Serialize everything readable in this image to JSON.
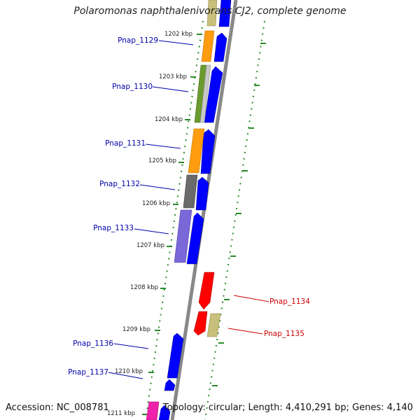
{
  "title": "Polaromonas naphthalenivorans CJ2, complete genome",
  "footer": {
    "accession": "Accession: NC_008781",
    "topology": "Topology: circular; Length: 4,410,291 bp; Genes: 4,140"
  },
  "colors": {
    "label_left": "#0000aa",
    "label_right": "#cc0000",
    "tick": "#2a8a2a",
    "axis": "#888888",
    "forward_strand": "#0000ff"
  },
  "scale_ticks": [
    "1202 kbp",
    "1203 kbp",
    "1204 kbp",
    "1205 kbp",
    "1206 kbp",
    "1207 kbp",
    "1208 kbp",
    "1209 kbp",
    "1210 kbp",
    "1211 kbp"
  ],
  "gene_labels_left": [
    "Pnap_1129",
    "Pnap_1130",
    "Pnap_1131",
    "Pnap_1132",
    "Pnap_1133",
    "Pnap_1136",
    "Pnap_1137"
  ],
  "gene_labels_right": [
    "Pnap_1134",
    "Pnap_1135"
  ]
}
